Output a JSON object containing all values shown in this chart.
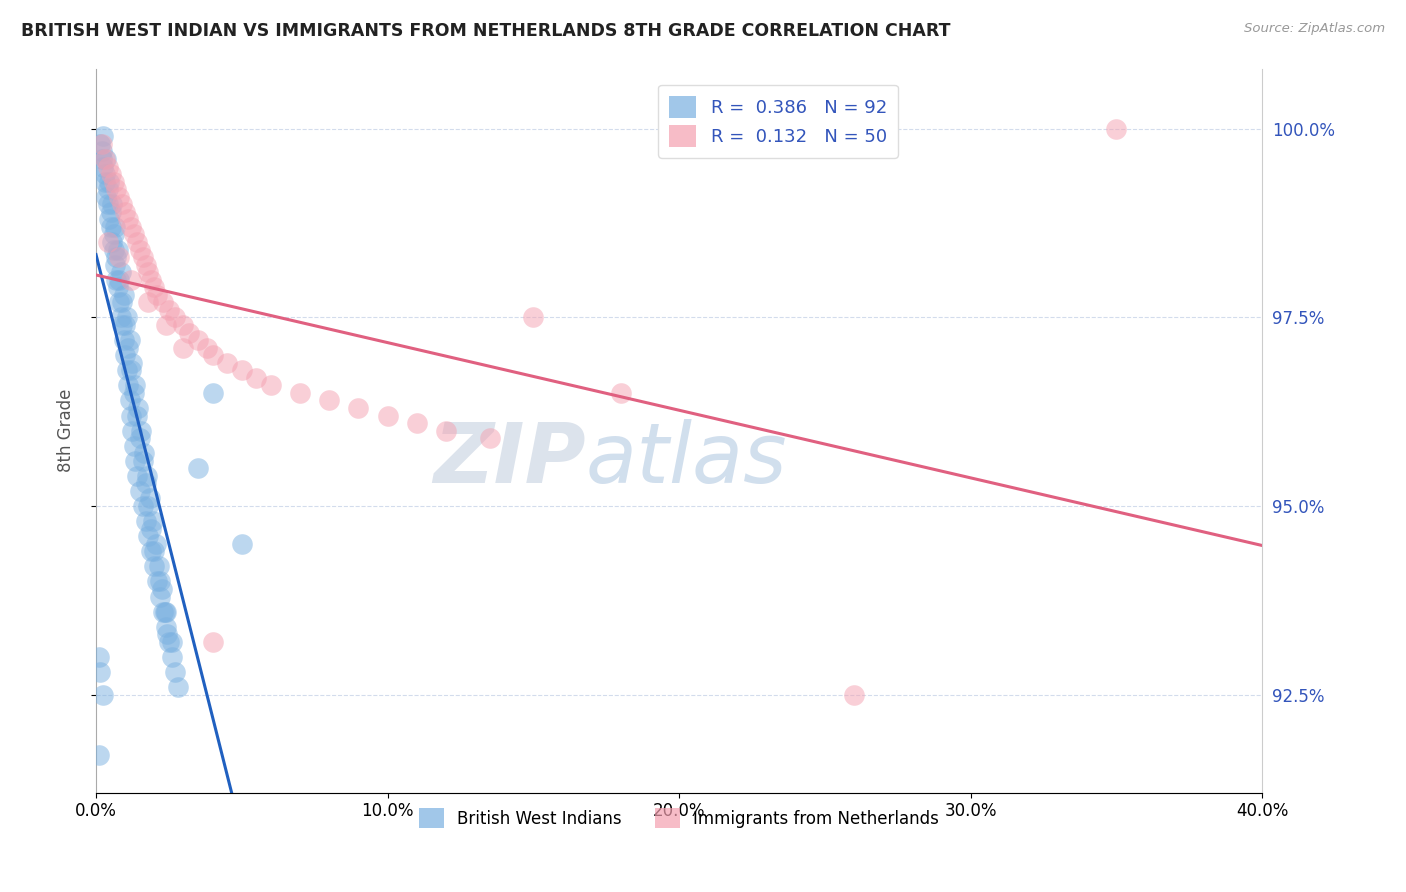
{
  "title": "BRITISH WEST INDIAN VS IMMIGRANTS FROM NETHERLANDS 8TH GRADE CORRELATION CHART",
  "source": "Source: ZipAtlas.com",
  "ylabel": "8th Grade",
  "x_min": 0.0,
  "x_max": 40.0,
  "y_min": 91.2,
  "y_max": 100.8,
  "yticks": [
    92.5,
    95.0,
    97.5,
    100.0
  ],
  "xticks": [
    0.0,
    10.0,
    20.0,
    30.0,
    40.0
  ],
  "series1_name": "British West Indians",
  "series1_R": 0.386,
  "series1_N": 92,
  "series2_name": "Immigrants from Netherlands",
  "series2_R": 0.132,
  "series2_N": 50,
  "blue_dot_color": "#7ab0e0",
  "pink_dot_color": "#f4a0b0",
  "blue_line_color": "#2060c0",
  "pink_line_color": "#e06080",
  "background_color": "#ffffff",
  "watermark_zip": "ZIP",
  "watermark_atlas": "atlas",
  "blue_scatter_x": [
    0.15,
    0.2,
    0.25,
    0.3,
    0.35,
    0.4,
    0.45,
    0.5,
    0.55,
    0.6,
    0.65,
    0.7,
    0.75,
    0.8,
    0.85,
    0.9,
    0.95,
    1.0,
    1.05,
    1.1,
    1.15,
    1.2,
    1.25,
    1.3,
    1.35,
    1.4,
    1.5,
    1.6,
    1.7,
    1.8,
    1.9,
    2.0,
    2.1,
    2.2,
    2.3,
    2.4,
    2.5,
    2.6,
    2.7,
    2.8,
    0.2,
    0.3,
    0.4,
    0.5,
    0.6,
    0.7,
    0.8,
    0.9,
    1.0,
    1.1,
    1.2,
    1.3,
    1.4,
    1.5,
    1.6,
    1.7,
    1.8,
    1.9,
    2.0,
    2.2,
    2.4,
    2.6,
    0.25,
    0.35,
    0.45,
    0.55,
    0.65,
    0.75,
    0.85,
    0.95,
    1.05,
    1.15,
    1.25,
    1.35,
    1.45,
    1.55,
    1.65,
    1.75,
    1.85,
    1.95,
    2.05,
    2.15,
    2.25,
    2.35,
    2.45,
    0.15,
    0.25,
    3.5,
    4.0,
    5.0,
    0.1,
    0.1
  ],
  "blue_scatter_y": [
    99.8,
    99.6,
    99.5,
    99.3,
    99.1,
    99.0,
    98.8,
    98.7,
    98.5,
    98.4,
    98.2,
    98.0,
    97.9,
    97.7,
    97.5,
    97.4,
    97.2,
    97.0,
    96.8,
    96.6,
    96.4,
    96.2,
    96.0,
    95.8,
    95.6,
    95.4,
    95.2,
    95.0,
    94.8,
    94.6,
    94.4,
    94.2,
    94.0,
    93.8,
    93.6,
    93.4,
    93.2,
    93.0,
    92.8,
    92.6,
    99.7,
    99.4,
    99.2,
    98.9,
    98.6,
    98.3,
    98.0,
    97.7,
    97.4,
    97.1,
    96.8,
    96.5,
    96.2,
    95.9,
    95.6,
    95.3,
    95.0,
    94.7,
    94.4,
    94.0,
    93.6,
    93.2,
    99.9,
    99.6,
    99.3,
    99.0,
    98.7,
    98.4,
    98.1,
    97.8,
    97.5,
    97.2,
    96.9,
    96.6,
    96.3,
    96.0,
    95.7,
    95.4,
    95.1,
    94.8,
    94.5,
    94.2,
    93.9,
    93.6,
    93.3,
    92.8,
    92.5,
    95.5,
    96.5,
    94.5,
    93.0,
    91.7
  ],
  "pink_scatter_x": [
    0.2,
    0.4,
    0.6,
    0.8,
    1.0,
    1.2,
    1.4,
    1.6,
    1.8,
    2.0,
    2.3,
    2.7,
    3.2,
    3.8,
    4.5,
    5.5,
    7.0,
    9.0,
    11.0,
    13.5,
    0.3,
    0.5,
    0.7,
    0.9,
    1.1,
    1.3,
    1.5,
    1.7,
    1.9,
    2.1,
    2.5,
    3.0,
    3.5,
    4.0,
    5.0,
    6.0,
    8.0,
    10.0,
    12.0,
    15.0,
    0.4,
    0.8,
    1.2,
    1.8,
    2.4,
    3.0,
    4.0,
    18.0,
    26.0,
    35.0
  ],
  "pink_scatter_y": [
    99.8,
    99.5,
    99.3,
    99.1,
    98.9,
    98.7,
    98.5,
    98.3,
    98.1,
    97.9,
    97.7,
    97.5,
    97.3,
    97.1,
    96.9,
    96.7,
    96.5,
    96.3,
    96.1,
    95.9,
    99.6,
    99.4,
    99.2,
    99.0,
    98.8,
    98.6,
    98.4,
    98.2,
    98.0,
    97.8,
    97.6,
    97.4,
    97.2,
    97.0,
    96.8,
    96.6,
    96.4,
    96.2,
    96.0,
    97.5,
    98.5,
    98.3,
    98.0,
    97.7,
    97.4,
    97.1,
    93.2,
    96.5,
    92.5,
    100.0
  ]
}
